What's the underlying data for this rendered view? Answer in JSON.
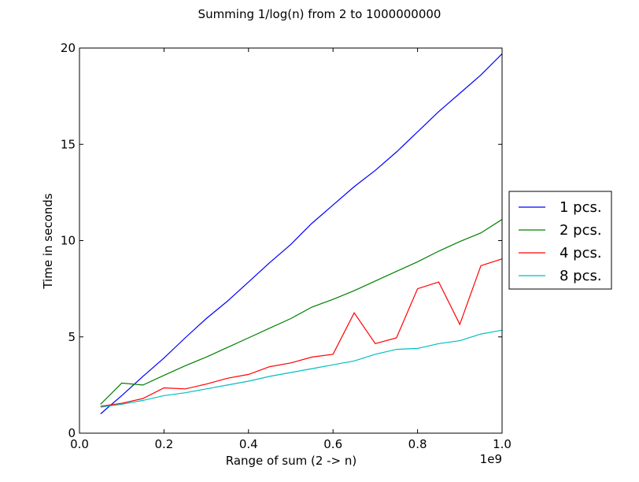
{
  "chart_data": {
    "type": "line",
    "title": "Summing 1/log(n) from 2 to 1000000000",
    "xlabel": "Range of sum (2 -> n)",
    "ylabel": "Time in seconds",
    "x_offset_label": "1e9",
    "xlim": [
      0.0,
      1.0
    ],
    "ylim": [
      0,
      20
    ],
    "xticks": [
      "0.0",
      "0.2",
      "0.4",
      "0.6",
      "0.8",
      "1.0"
    ],
    "yticks": [
      "0",
      "5",
      "10",
      "15",
      "20"
    ],
    "grid": false,
    "legend_position": "right, outside plot",
    "x": [
      0.05,
      0.1,
      0.15,
      0.2,
      0.25,
      0.3,
      0.35,
      0.4,
      0.45,
      0.5,
      0.55,
      0.6,
      0.65,
      0.7,
      0.75,
      0.8,
      0.85,
      0.9,
      0.95,
      1.0
    ],
    "series": [
      {
        "name": "1 pcs.",
        "color": "#0000ff",
        "values": [
          1.0,
          1.95,
          2.95,
          3.9,
          4.95,
          5.95,
          6.85,
          7.85,
          8.85,
          9.8,
          10.9,
          11.85,
          12.8,
          13.65,
          14.6,
          15.65,
          16.7,
          17.65,
          18.6,
          19.7
        ]
      },
      {
        "name": "2 pcs.",
        "color": "#008000",
        "values": [
          1.5,
          2.6,
          2.5,
          3.0,
          3.5,
          3.95,
          4.45,
          4.95,
          5.45,
          5.95,
          6.55,
          6.95,
          7.4,
          7.9,
          8.4,
          8.9,
          9.45,
          9.95,
          10.4,
          11.1
        ]
      },
      {
        "name": "4 pcs.",
        "color": "#ff0000",
        "values": [
          1.4,
          1.55,
          1.8,
          2.35,
          2.3,
          2.55,
          2.85,
          3.05,
          3.45,
          3.65,
          3.95,
          4.1,
          6.25,
          4.65,
          4.95,
          7.5,
          7.85,
          5.65,
          8.7,
          9.05
        ]
      },
      {
        "name": "8 pcs.",
        "color": "#00bfbf",
        "values": [
          1.35,
          1.5,
          1.7,
          1.95,
          2.1,
          2.3,
          2.5,
          2.7,
          2.95,
          3.15,
          3.35,
          3.55,
          3.75,
          4.1,
          4.35,
          4.4,
          4.65,
          4.8,
          5.15,
          5.35
        ]
      }
    ]
  }
}
